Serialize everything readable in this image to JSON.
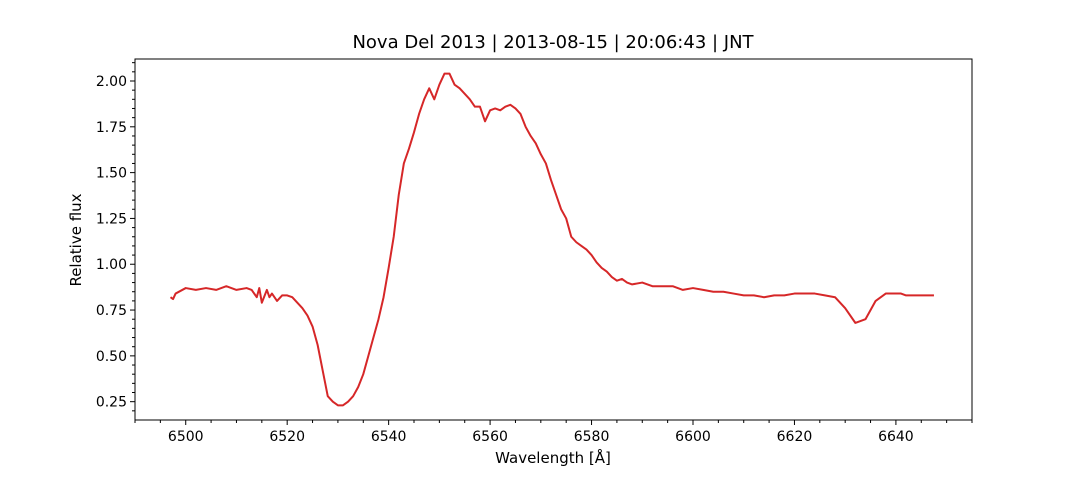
{
  "chart_data": {
    "type": "line",
    "title": "Nova Del 2013 | 2013-08-15 | 20:06:43 | JNT",
    "xlabel": "Wavelength [Å]",
    "ylabel": "Relative flux",
    "xlim": [
      6490,
      6655
    ],
    "ylim": [
      0.15,
      2.12
    ],
    "xticks": [
      6500,
      6520,
      6540,
      6560,
      6580,
      6600,
      6620,
      6640
    ],
    "yticks": [
      0.25,
      0.5,
      0.75,
      1.0,
      1.25,
      1.5,
      1.75,
      2.0
    ],
    "xtick_labels": [
      "6500",
      "6520",
      "6540",
      "6560",
      "6580",
      "6600",
      "6620",
      "6640"
    ],
    "ytick_labels": [
      "0.25",
      "0.50",
      "0.75",
      "1.00",
      "1.25",
      "1.50",
      "1.75",
      "2.00"
    ],
    "grid": false,
    "legend": "none",
    "series": [
      {
        "color": "#d62728",
        "x": [
          6497.0,
          6497.5,
          6498,
          6500,
          6502,
          6504,
          6506,
          6508,
          6510,
          6512,
          6513,
          6514,
          6514.5,
          6515,
          6516,
          6516.5,
          6517,
          6518,
          6519,
          6520,
          6521,
          6522,
          6523,
          6524,
          6525,
          6526,
          6527,
          6528,
          6529,
          6530,
          6531,
          6532,
          6533,
          6534,
          6535,
          6536,
          6537,
          6538,
          6539,
          6540,
          6541,
          6542,
          6543,
          6544,
          6545,
          6546,
          6547,
          6548,
          6549,
          6550,
          6551,
          6552,
          6553,
          6554,
          6555,
          6556,
          6557,
          6558,
          6559,
          6560,
          6561,
          6562,
          6563,
          6564,
          6565,
          6566,
          6567,
          6568,
          6569,
          6570,
          6571,
          6572,
          6573,
          6574,
          6575,
          6576,
          6577,
          6578,
          6579,
          6580,
          6581,
          6582,
          6583,
          6584,
          6585,
          6586,
          6587,
          6588,
          6590,
          6592,
          6594,
          6596,
          6598,
          6600,
          6602,
          6604,
          6606,
          6608,
          6610,
          6612,
          6614,
          6616,
          6618,
          6620,
          6622,
          6624,
          6626,
          6628,
          6630,
          6632,
          6634,
          6636,
          6638,
          6640,
          6641,
          6642,
          6642.5,
          6643,
          6644,
          6645,
          6646,
          6647.5
        ],
        "y": [
          0.82,
          0.81,
          0.84,
          0.87,
          0.86,
          0.87,
          0.86,
          0.88,
          0.86,
          0.87,
          0.86,
          0.82,
          0.87,
          0.79,
          0.86,
          0.82,
          0.84,
          0.8,
          0.83,
          0.83,
          0.82,
          0.79,
          0.76,
          0.72,
          0.66,
          0.56,
          0.42,
          0.28,
          0.25,
          0.23,
          0.23,
          0.25,
          0.28,
          0.33,
          0.4,
          0.5,
          0.6,
          0.7,
          0.82,
          0.98,
          1.15,
          1.38,
          1.55,
          1.63,
          1.72,
          1.82,
          1.9,
          1.96,
          1.9,
          1.98,
          2.04,
          2.04,
          1.98,
          1.96,
          1.93,
          1.9,
          1.86,
          1.86,
          1.78,
          1.84,
          1.85,
          1.84,
          1.86,
          1.87,
          1.85,
          1.82,
          1.75,
          1.7,
          1.66,
          1.6,
          1.55,
          1.46,
          1.38,
          1.3,
          1.25,
          1.15,
          1.12,
          1.1,
          1.08,
          1.05,
          1.01,
          0.98,
          0.96,
          0.93,
          0.91,
          0.92,
          0.9,
          0.89,
          0.9,
          0.88,
          0.88,
          0.88,
          0.86,
          0.87,
          0.86,
          0.85,
          0.85,
          0.84,
          0.83,
          0.83,
          0.82,
          0.83,
          0.83,
          0.84,
          0.84,
          0.84,
          0.83,
          0.82,
          0.76,
          0.68,
          0.7,
          0.8,
          0.84,
          0.84,
          0.84,
          0.83,
          0.83,
          0.83,
          0.83,
          0.83,
          0.83,
          0.83
        ]
      }
    ]
  }
}
